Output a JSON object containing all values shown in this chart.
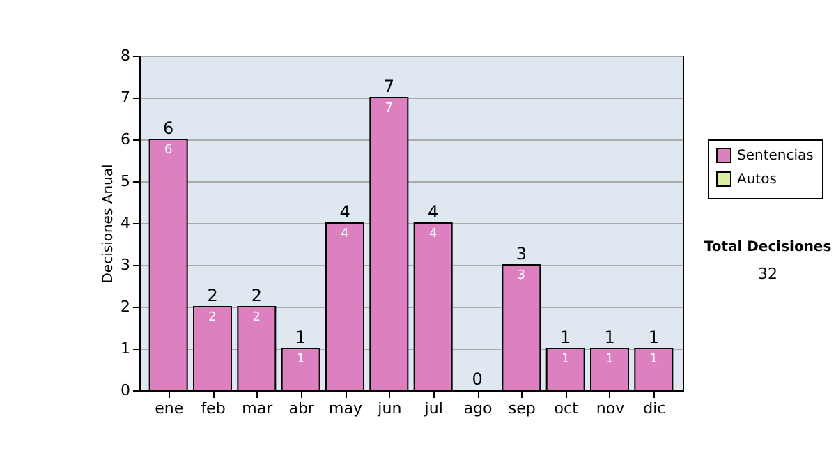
{
  "chart_data": {
    "type": "bar",
    "stacked": true,
    "ylabel": "Decisiones Anual",
    "categories": [
      "ene",
      "feb",
      "mar",
      "abr",
      "may",
      "jun",
      "jul",
      "ago",
      "sep",
      "oct",
      "nov",
      "dic"
    ],
    "series": [
      {
        "name": "Sentencias",
        "color": "#dd80c0",
        "values": [
          6,
          2,
          2,
          1,
          4,
          7,
          4,
          0,
          3,
          1,
          1,
          1
        ],
        "value_labels": [
          "6",
          "2",
          "2",
          "1",
          "4",
          "7",
          "4",
          null,
          "3",
          "1",
          "1",
          "1"
        ]
      },
      {
        "name": "Autos",
        "color": "#d8f0a0",
        "values": [
          0,
          0,
          0,
          0,
          0,
          0,
          0,
          0,
          0,
          0,
          0,
          0
        ]
      }
    ],
    "totals": [
      "6",
      "2",
      "2",
      "1",
      "4",
      "7",
      "4",
      "0",
      "3",
      "1",
      "1",
      "1"
    ],
    "ylim": [
      0,
      8
    ],
    "yticks": [
      0,
      1,
      2,
      3,
      4,
      5,
      6,
      7,
      8
    ],
    "grid": "y",
    "legend": "right",
    "annotations": [
      "Total Decisiones",
      "32"
    ]
  }
}
